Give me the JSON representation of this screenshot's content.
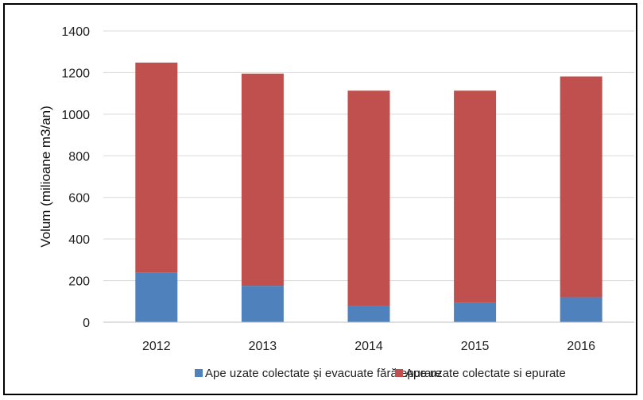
{
  "chart_data": {
    "type": "bar",
    "stacked": true,
    "categories": [
      "2012",
      "2013",
      "2014",
      "2015",
      "2016"
    ],
    "series": [
      {
        "name": "Ape uzate colectate şi evacuate fără epurare",
        "color": "#4F81BD",
        "values": [
          240,
          175,
          80,
          95,
          120
        ]
      },
      {
        "name": "Ape uzate colectate si epurate",
        "color": "#C0504D",
        "values": [
          1008,
          1020,
          1033,
          1018,
          1061
        ]
      }
    ],
    "ylabel": "Volum (milioane m3/an)",
    "ylim": [
      0,
      1400
    ],
    "yticks": [
      "0",
      "200",
      "400",
      "600",
      "800",
      "1000",
      "1200",
      "1400"
    ],
    "grid": true,
    "legend_position": "bottom"
  }
}
